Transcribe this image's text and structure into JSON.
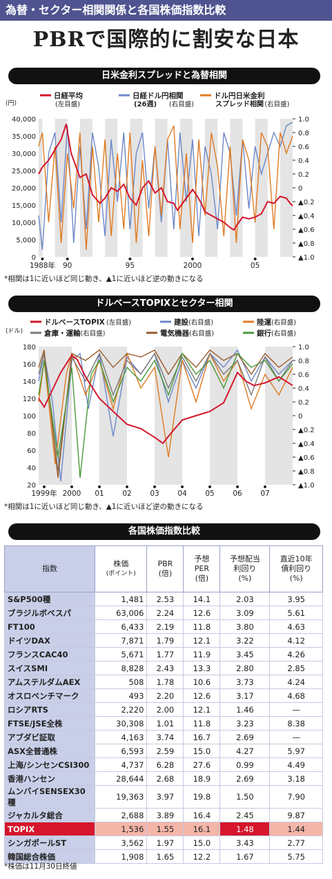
{
  "header": {
    "kicker": "為替・セクター相関関係と各国株価指数比較",
    "title": "PBRで国際的に割安な日本"
  },
  "section1": {
    "heading": "日米金利スプレッドと為替相関",
    "note": "*相関は1に近いほど同じ動き、▲1に近いほど逆の動きになる"
  },
  "section2": {
    "heading": "ドルベースTOPIXとセクター相関",
    "note": "*相関は1に近いほど同じ動き、▲1に近いほど逆の動きになる"
  },
  "section3": {
    "heading": "各国株価指数比較",
    "note": "*株価は11月30日終値"
  },
  "colors": {
    "red": "#d5162c",
    "blue": "#6d88c8",
    "orange": "#e07a22",
    "green": "#4a9a3a",
    "brown": "#9a5a2a",
    "purple": "#4f5490"
  },
  "chart_data": [
    {
      "type": "line",
      "unit_left": "(円)",
      "legend": [
        {
          "name": "日経平均",
          "sub": "(左目盛)",
          "color": "#d5162c"
        },
        {
          "name": "日経ドル円相関",
          "sub2": "(26週)",
          "sub": "(右目盛)",
          "color": "#6d88c8"
        },
        {
          "name": "ドル円日米金利",
          "sub2": "スプレッド相関",
          "sub": "(右目盛)",
          "color": "#e07a22"
        }
      ],
      "left_axis": {
        "min": 0,
        "max": 40000,
        "ticks": [
          "40,000",
          "35,000",
          "30,000",
          "25,000",
          "20,000",
          "15,000",
          "10,000",
          "5,000",
          "0"
        ]
      },
      "right_axis": {
        "min": -1,
        "max": 1,
        "ticks": [
          "1.0",
          "0.8",
          "0.6",
          "0.4",
          "0.2",
          "0",
          "▲0.2",
          "▲0.4",
          "▲0.6",
          "▲0.8",
          "▲1.0"
        ]
      },
      "x_labels": [
        "1988年",
        "90",
        "95",
        "2000",
        "05"
      ],
      "x_label_years": [
        1988,
        1990,
        1995,
        2000,
        2005
      ],
      "x_range": [
        1987.7,
        2008.0
      ],
      "series": [
        {
          "name": "日経平均",
          "axis": "left",
          "color": "#d5162c",
          "x": [
            1987.7,
            1988,
            1988.5,
            1989,
            1989.5,
            1989.9,
            1990.3,
            1990.7,
            1991,
            1991.5,
            1992,
            1992.6,
            1993,
            1993.5,
            1994,
            1994.5,
            1995,
            1995.5,
            1996,
            1996.5,
            1997,
            1997.5,
            1998,
            1998.5,
            1998.8,
            1999,
            1999.5,
            2000,
            2000.3,
            2000.7,
            2001,
            2001.5,
            2002,
            2002.5,
            2003,
            2003.3,
            2003.6,
            2004,
            2004.5,
            2005,
            2005.5,
            2006,
            2006.5,
            2007,
            2007.5,
            2007.8,
            2008.0
          ],
          "values": [
            24000,
            26000,
            28000,
            31000,
            34000,
            38500,
            30000,
            26000,
            23000,
            24000,
            18000,
            15500,
            17000,
            20000,
            19000,
            21000,
            17000,
            15000,
            20000,
            22000,
            18500,
            20000,
            16000,
            15500,
            13500,
            14500,
            17000,
            19500,
            18000,
            15500,
            13000,
            12000,
            11000,
            10000,
            8500,
            7800,
            9500,
            11500,
            11000,
            11500,
            12500,
            16000,
            15500,
            17500,
            17000,
            15500,
            14800
          ]
        },
        {
          "name": "日経ドル円相関",
          "axis": "right",
          "color": "#6d88c8",
          "x": [
            1987.7,
            1988,
            1988.5,
            1989,
            1989.5,
            1990,
            1990.5,
            1991,
            1991.5,
            1992,
            1992.5,
            1993,
            1993.5,
            1994,
            1994.5,
            1995,
            1995.5,
            1996,
            1996.5,
            1997,
            1997.5,
            1998,
            1998.5,
            1999,
            1999.5,
            2000,
            2000.5,
            2001,
            2001.5,
            2002,
            2002.5,
            2003,
            2003.5,
            2004,
            2004.5,
            2005,
            2005.5,
            2006,
            2006.5,
            2007,
            2007.5,
            2008.0
          ],
          "values": [
            -0.4,
            -0.9,
            0.5,
            0.8,
            -0.5,
            0.9,
            -0.8,
            0.6,
            -0.6,
            0.8,
            0.3,
            -0.7,
            0.7,
            -0.2,
            0.8,
            -0.6,
            0.5,
            0.8,
            -0.3,
            0.6,
            -0.5,
            0.7,
            -0.6,
            0.8,
            -0.2,
            0.7,
            -0.7,
            0.6,
            0.2,
            -0.6,
            0.8,
            0.5,
            -0.4,
            0.7,
            -0.3,
            0.6,
            0.2,
            0.5,
            0.8,
            0.6,
            0.9,
            0.95
          ]
        },
        {
          "name": "ドル円日米金利スプレッド相関",
          "axis": "right",
          "color": "#e07a22",
          "x": [
            1987.7,
            1988,
            1988.5,
            1989,
            1989.5,
            1990,
            1990.5,
            1991,
            1991.5,
            1992,
            1992.5,
            1993,
            1993.5,
            1994,
            1994.5,
            1995,
            1995.5,
            1996,
            1996.5,
            1997,
            1997.5,
            1998,
            1998.5,
            1999,
            1999.5,
            2000,
            2000.5,
            2001,
            2001.5,
            2002,
            2002.5,
            2003,
            2003.5,
            2004,
            2004.5,
            2005,
            2005.5,
            2006,
            2006.5,
            2007,
            2007.5,
            2008.0
          ],
          "values": [
            0.6,
            0.8,
            -0.5,
            0.6,
            -0.8,
            0.5,
            -0.3,
            0.8,
            -0.9,
            0.6,
            -0.5,
            0.7,
            -0.7,
            0.5,
            -0.6,
            0.8,
            -0.8,
            0.4,
            -0.7,
            0.6,
            -0.4,
            0.7,
            0.9,
            -0.6,
            0.5,
            -0.8,
            0.7,
            -0.4,
            0.8,
            0.3,
            -0.7,
            0.6,
            -0.8,
            0.7,
            0.4,
            -0.5,
            0.8,
            0.6,
            -0.6,
            0.8,
            0.5,
            0.75
          ]
        }
      ]
    },
    {
      "type": "line",
      "unit_left": "(ドル)",
      "legend": [
        {
          "name": "ドルベースTOPIX",
          "sub": "(左目盛)",
          "color": "#d5162c"
        },
        {
          "name": "建設",
          "sub": "(右目盛)",
          "color": "#6d88c8"
        },
        {
          "name": "陸運",
          "sub": "(右目盛)",
          "color": "#e07a22"
        },
        {
          "name": "倉庫・運輸",
          "sub": "(右目盛)",
          "color": "#7a7a7a"
        },
        {
          "name": "電気機器",
          "sub": "(右目盛)",
          "color": "#9a5a2a"
        },
        {
          "name": "銀行",
          "sub": "(右目盛)",
          "color": "#4a9a3a"
        }
      ],
      "left_axis": {
        "min": 20,
        "max": 180,
        "ticks": [
          "180",
          "160",
          "140",
          "120",
          "100",
          "80",
          "60",
          "40",
          "20"
        ]
      },
      "right_axis": {
        "min": -1,
        "max": 1,
        "ticks": [
          "1.0",
          "0.8",
          "0.6",
          "0.4",
          "0.2",
          "0",
          "▲0.2",
          "▲0.4",
          "▲0.6",
          "▲0.8",
          "▲1.0"
        ]
      },
      "x_labels": [
        "1999年",
        "2000",
        "01",
        "02",
        "03",
        "04",
        "05",
        "06",
        "07"
      ],
      "x_label_years": [
        1999,
        2000,
        2001,
        2002,
        2003,
        2004,
        2005,
        2006,
        2007
      ],
      "x_range": [
        1998.8,
        2008.0
      ],
      "series": [
        {
          "name": "ドルベースTOPIX",
          "axis": "left",
          "color": "#d5162c",
          "x": [
            1998.8,
            1999,
            1999.3,
            1999.6,
            2000,
            2000.2,
            2000.5,
            2001,
            2001.5,
            2002,
            2002.5,
            2003,
            2003.3,
            2003.6,
            2004,
            2004.5,
            2005,
            2005.5,
            2006,
            2006.3,
            2006.6,
            2007,
            2007.5,
            2008.0
          ],
          "values": [
            120,
            110,
            130,
            150,
            170,
            165,
            145,
            120,
            105,
            90,
            85,
            75,
            68,
            80,
            95,
            100,
            105,
            115,
            150,
            140,
            135,
            138,
            145,
            135
          ]
        },
        {
          "name": "建設",
          "axis": "right",
          "color": "#6d88c8",
          "x": [
            1998.8,
            1999,
            1999.3,
            1999.6,
            2000,
            2000.3,
            2000.6,
            2001,
            2001.5,
            2002,
            2002.5,
            2003,
            2003.5,
            2004,
            2004.5,
            2005,
            2005.5,
            2006,
            2006.5,
            2007,
            2007.5,
            2008.0
          ],
          "values": [
            0.5,
            0.9,
            0.2,
            -0.95,
            0.8,
            0.9,
            0.1,
            0.9,
            -0.3,
            0.85,
            0.6,
            0.9,
            0.2,
            0.8,
            0.4,
            0.9,
            0.7,
            0.95,
            0.5,
            0.85,
            0.6,
            0.8
          ]
        },
        {
          "name": "陸運",
          "axis": "right",
          "color": "#e07a22",
          "x": [
            1998.8,
            1999,
            1999.4,
            1999.8,
            2000,
            2000.5,
            2001,
            2001.5,
            2002,
            2002.5,
            2003,
            2003.5,
            2004,
            2004.5,
            2005,
            2005.5,
            2006,
            2006.5,
            2007,
            2007.5,
            2008.0
          ],
          "values": [
            0.2,
            0.8,
            -0.7,
            0.6,
            0.9,
            0.3,
            0.8,
            0.1,
            0.9,
            0.4,
            0.7,
            -0.6,
            0.8,
            0.2,
            0.9,
            0.5,
            0.8,
            0.1,
            0.6,
            0.3,
            0.7
          ]
        },
        {
          "name": "倉庫・運輸",
          "axis": "right",
          "color": "#7a7a7a",
          "x": [
            1998.8,
            1999,
            1999.5,
            2000,
            2000.5,
            2001,
            2001.5,
            2002,
            2002.5,
            2003,
            2003.5,
            2004,
            2004.5,
            2005,
            2005.5,
            2006,
            2006.5,
            2007,
            2007.5,
            2008.0
          ],
          "values": [
            0.6,
            0.9,
            -0.8,
            0.85,
            0.5,
            0.9,
            0.3,
            0.8,
            0.6,
            0.9,
            0.4,
            0.85,
            0.5,
            0.9,
            0.6,
            0.8,
            0.3,
            0.85,
            0.5,
            0.8
          ]
        },
        {
          "name": "電気機器",
          "axis": "right",
          "color": "#9a5a2a",
          "x": [
            1998.8,
            1999,
            1999.5,
            2000,
            2000.5,
            2001,
            2001.5,
            2002,
            2002.5,
            2003,
            2003.5,
            2004,
            2004.5,
            2005,
            2005.5,
            2006,
            2006.5,
            2007,
            2007.5,
            2008.0
          ],
          "values": [
            0.7,
            0.95,
            -0.9,
            0.9,
            0.8,
            0.95,
            0.7,
            0.9,
            0.85,
            0.95,
            0.6,
            0.9,
            0.7,
            0.95,
            0.8,
            0.9,
            0.6,
            0.9,
            0.7,
            0.85
          ]
        },
        {
          "name": "銀行",
          "axis": "right",
          "color": "#4a9a3a",
          "x": [
            1998.8,
            1999,
            1999.5,
            2000,
            2000.3,
            2000.7,
            2001,
            2001.5,
            2002,
            2002.5,
            2003,
            2003.5,
            2004,
            2004.5,
            2005,
            2005.5,
            2006,
            2006.5,
            2007,
            2007.5,
            2008.0
          ],
          "values": [
            0.3,
            0.8,
            -0.6,
            0.7,
            -0.9,
            0.6,
            0.8,
            0.2,
            0.7,
            0.5,
            0.8,
            0.3,
            0.9,
            0.6,
            0.8,
            0.4,
            0.9,
            0.7,
            0.8,
            0.5,
            0.75
          ]
        }
      ]
    },
    {
      "type": "table",
      "headers": [
        [
          "指数"
        ],
        [
          "株価",
          "(ポイント)"
        ],
        [
          "PBR",
          "(倍)"
        ],
        [
          "予想",
          "PER",
          "(倍)"
        ],
        [
          "予想配当",
          "利回り",
          "(%)"
        ],
        [
          "直近10年",
          "債利回り",
          "(%)"
        ]
      ],
      "rows": [
        [
          "S&P500種",
          "1,481",
          "2.53",
          "14.1",
          "2.03",
          "3.95"
        ],
        [
          "ブラジルボベスパ",
          "63,006",
          "2.24",
          "12.6",
          "3.09",
          "5.61"
        ],
        [
          "FT100",
          "6,433",
          "2.19",
          "11.8",
          "3.80",
          "4.63"
        ],
        [
          "ドイツDAX",
          "7,871",
          "1.79",
          "12.1",
          "3.22",
          "4.12"
        ],
        [
          "フランスCAC40",
          "5,671",
          "1.77",
          "11.9",
          "3.45",
          "4.26"
        ],
        [
          "スイスSMI",
          "8,828",
          "2.43",
          "13.3",
          "2.80",
          "2.85"
        ],
        [
          "アムステルダムAEX",
          "508",
          "1.78",
          "10.6",
          "3.73",
          "4.24"
        ],
        [
          "オスロベンチマーク",
          "493",
          "2.20",
          "12.6",
          "3.17",
          "4.68"
        ],
        [
          "ロシアRTS",
          "2,220",
          "2.00",
          "12.1",
          "1.46",
          "—"
        ],
        [
          "FTSE/JSE全株",
          "30,308",
          "1.01",
          "11.8",
          "3.23",
          "8.38"
        ],
        [
          "アブダビ証取",
          "4,163",
          "3.74",
          "16.7",
          "2.69",
          "—"
        ],
        [
          "ASX全普通株",
          "6,593",
          "2.59",
          "15.0",
          "4.27",
          "5.97"
        ],
        [
          "上海/シンセンCSI300",
          "4,737",
          "6.28",
          "27.6",
          "0.99",
          "4.49"
        ],
        [
          "香港ハンセン",
          "28,644",
          "2.68",
          "18.9",
          "2.69",
          "3.18"
        ],
        [
          "ムンバイSENSEX30種",
          "19,363",
          "3.97",
          "19.8",
          "1.50",
          "7.90"
        ],
        [
          "ジャカルタ総合",
          "2,688",
          "3.89",
          "16.4",
          "2.45",
          "9.87"
        ],
        [
          "TOPIX",
          "1,536",
          "1.55",
          "16.1",
          "1.48",
          "1.44"
        ],
        [
          "シンガポールST",
          "3,562",
          "1.97",
          "15.0",
          "3.43",
          "2.77"
        ],
        [
          "韓国総合株価",
          "1,908",
          "1.65",
          "12.2",
          "1.67",
          "5.75"
        ]
      ],
      "highlight_row": "TOPIX"
    }
  ]
}
